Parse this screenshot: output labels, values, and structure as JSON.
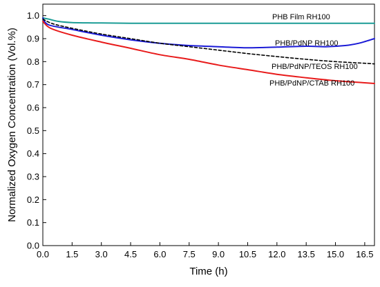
{
  "chart_data": {
    "type": "line",
    "title": "",
    "xlabel": "Time (h)",
    "ylabel": "Normalized Oxygen Concentration (Vol.%)",
    "xlim": [
      0,
      17
    ],
    "ylim": [
      0,
      1.05
    ],
    "grid": false,
    "legend": "none",
    "x_ticks": [
      "0.0",
      "1.5",
      "3.0",
      "4.5",
      "6.0",
      "7.5",
      "9.0",
      "10.5",
      "12.0",
      "13.5",
      "15.0",
      "16.5"
    ],
    "y_ticks": [
      "0.0",
      "0.1",
      "0.2",
      "0.3",
      "0.4",
      "0.5",
      "0.6",
      "0.7",
      "0.8",
      "0.9",
      "1.0"
    ],
    "series": [
      {
        "name": "PHB Film RH100",
        "color": "#1a9c95",
        "style": "solid",
        "x": [
          0,
          0.3,
          0.8,
          1.5,
          3,
          4.5,
          6,
          7.5,
          9,
          10.5,
          12,
          13.5,
          15,
          16.5,
          17
        ],
        "y": [
          0.99,
          0.985,
          0.975,
          0.97,
          0.968,
          0.967,
          0.967,
          0.967,
          0.967,
          0.967,
          0.967,
          0.967,
          0.967,
          0.967,
          0.967
        ]
      },
      {
        "name": "PHB/PdNP RH100",
        "color": "#1a1ad6",
        "style": "solid",
        "x": [
          0,
          0.3,
          1.5,
          3,
          4.5,
          6,
          7.5,
          9,
          10.5,
          12,
          13.5,
          14.5,
          15.5,
          16.2,
          17
        ],
        "y": [
          0.99,
          0.96,
          0.94,
          0.915,
          0.895,
          0.88,
          0.87,
          0.865,
          0.86,
          0.863,
          0.867,
          0.865,
          0.87,
          0.88,
          0.9
        ]
      },
      {
        "name": "PHB/PdNP/TEOS RH100",
        "color": "#000000",
        "style": "dashed",
        "x": [
          0,
          0.5,
          1.5,
          3,
          4.5,
          6,
          7.5,
          9,
          10.5,
          12,
          13.5,
          15,
          16.5,
          17
        ],
        "y": [
          0.985,
          0.965,
          0.945,
          0.92,
          0.9,
          0.88,
          0.865,
          0.85,
          0.835,
          0.822,
          0.81,
          0.8,
          0.793,
          0.79
        ]
      },
      {
        "name": "PHB/PdNP/CTAB RH100",
        "color": "#e81a1a",
        "style": "solid",
        "x": [
          0,
          0.4,
          1.5,
          3,
          4.5,
          6,
          7.5,
          9,
          10.5,
          12,
          13.5,
          15,
          16.5,
          17
        ],
        "y": [
          0.975,
          0.945,
          0.915,
          0.885,
          0.858,
          0.83,
          0.81,
          0.785,
          0.765,
          0.745,
          0.73,
          0.717,
          0.708,
          0.705
        ]
      }
    ]
  }
}
